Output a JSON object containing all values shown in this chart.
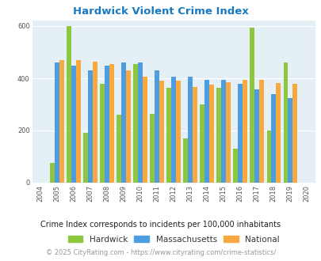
{
  "title": "Hardwick Violent Crime Index",
  "years": [
    2004,
    2005,
    2006,
    2007,
    2008,
    2009,
    2010,
    2011,
    2012,
    2013,
    2014,
    2015,
    2016,
    2017,
    2018,
    2019,
    2020
  ],
  "data_years": [
    2005,
    2006,
    2007,
    2008,
    2009,
    2010,
    2011,
    2012,
    2013,
    2014,
    2015,
    2016,
    2017,
    2018,
    2019
  ],
  "hardwick": [
    75,
    600,
    190,
    380,
    260,
    455,
    265,
    365,
    170,
    300,
    365,
    130,
    595,
    200,
    460
  ],
  "massachusetts": [
    460,
    450,
    430,
    450,
    460,
    460,
    430,
    405,
    405,
    395,
    393,
    380,
    358,
    340,
    325
  ],
  "national": [
    470,
    470,
    465,
    455,
    430,
    405,
    390,
    390,
    368,
    375,
    385,
    395,
    395,
    383,
    380
  ],
  "hardwick_color": "#8dc63f",
  "massachusetts_color": "#4d9de0",
  "national_color": "#f7a940",
  "plot_bg": "#e4f0f6",
  "ylim": [
    0,
    620
  ],
  "yticks": [
    0,
    200,
    400,
    600
  ],
  "subtitle": "Crime Index corresponds to incidents per 100,000 inhabitants",
  "footer": "© 2025 CityRating.com - https://www.cityrating.com/crime-statistics/",
  "title_color": "#1a7abf",
  "subtitle_color": "#222222",
  "footer_color": "#999999",
  "bar_width": 0.28,
  "title_fontsize": 9.5,
  "legend_fontsize": 7.5,
  "tick_fontsize": 6,
  "subtitle_fontsize": 7,
  "footer_fontsize": 6
}
